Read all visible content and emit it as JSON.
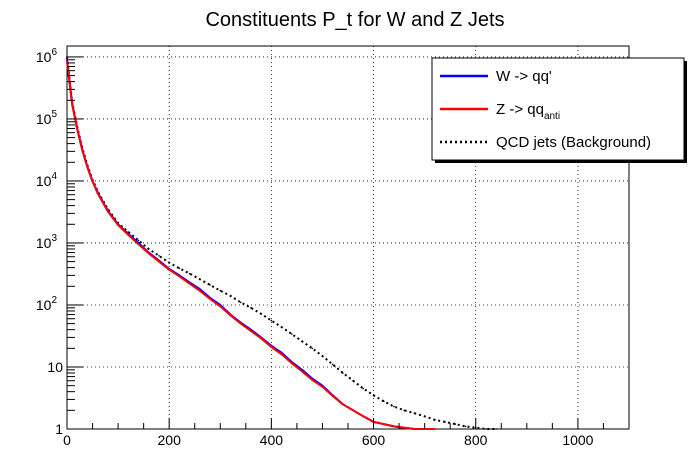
{
  "chart_data": {
    "type": "line",
    "title": "Constituents P_t for W and Z Jets",
    "xlabel": "",
    "ylabel": "",
    "xlim": [
      0,
      1100
    ],
    "ylim": [
      1,
      1500000
    ],
    "y_scale": "log",
    "grid": true,
    "legend_position": "top-right",
    "x_ticks": [
      {
        "value": 0,
        "label": "0"
      },
      {
        "value": 200,
        "label": "200"
      },
      {
        "value": 400,
        "label": "400"
      },
      {
        "value": 600,
        "label": "600"
      },
      {
        "value": 800,
        "label": "800"
      },
      {
        "value": 1000,
        "label": "1000"
      }
    ],
    "y_ticks": [
      {
        "value": 1,
        "base": "1",
        "exp": ""
      },
      {
        "value": 10,
        "base": "10",
        "exp": ""
      },
      {
        "value": 100,
        "base": "10",
        "exp": "2"
      },
      {
        "value": 1000,
        "base": "10",
        "exp": "3"
      },
      {
        "value": 10000,
        "base": "10",
        "exp": "4"
      },
      {
        "value": 100000,
        "base": "10",
        "exp": "5"
      },
      {
        "value": 1000000,
        "base": "10",
        "exp": "6"
      }
    ],
    "series": [
      {
        "name": "W -> qq'",
        "name_sub": "",
        "color": "#0000ff",
        "style": "solid",
        "x": [
          0,
          10,
          20,
          30,
          40,
          50,
          60,
          80,
          100,
          120,
          140,
          160,
          180,
          200,
          220,
          240,
          260,
          280,
          300,
          320,
          340,
          360,
          380,
          400,
          420,
          440,
          460,
          480,
          500,
          520,
          540,
          560,
          580,
          600,
          620,
          640,
          660,
          680,
          700,
          720
        ],
        "y": [
          900000,
          180000,
          70000,
          32000,
          17000,
          10000,
          6500,
          3300,
          2000,
          1400,
          1000,
          700,
          520,
          380,
          300,
          230,
          180,
          130,
          100,
          70,
          52,
          40,
          30,
          22,
          17,
          12,
          9,
          6.5,
          5,
          3.5,
          2.5,
          2,
          1.6,
          1.3,
          1.2,
          1.1,
          1.05,
          1,
          1,
          1
        ]
      },
      {
        "name": "Z -> qq",
        "name_sub": "anti",
        "color": "#ff0000",
        "style": "solid",
        "x": [
          0,
          10,
          20,
          30,
          40,
          50,
          60,
          80,
          100,
          120,
          140,
          160,
          180,
          200,
          220,
          240,
          260,
          280,
          300,
          320,
          340,
          360,
          380,
          400,
          420,
          440,
          460,
          480,
          500,
          520,
          540,
          560,
          580,
          600,
          620,
          640,
          660,
          680,
          700,
          720
        ],
        "y": [
          850000,
          170000,
          68000,
          31000,
          16500,
          9800,
          6300,
          3200,
          1950,
          1350,
          950,
          680,
          500,
          370,
          290,
          220,
          170,
          125,
          95,
          68,
          50,
          38,
          29,
          21,
          16,
          11.5,
          8.5,
          6.2,
          4.8,
          3.4,
          2.5,
          2,
          1.6,
          1.3,
          1.2,
          1.1,
          1.05,
          1,
          1,
          1
        ]
      },
      {
        "name": "QCD jets (Background)",
        "name_sub": "",
        "color": "#000000",
        "style": "dotted",
        "x": [
          0,
          10,
          20,
          30,
          40,
          50,
          60,
          80,
          100,
          120,
          140,
          160,
          180,
          200,
          220,
          240,
          260,
          280,
          300,
          320,
          340,
          360,
          380,
          400,
          420,
          440,
          460,
          480,
          500,
          520,
          540,
          560,
          580,
          600,
          620,
          640,
          660,
          680,
          700,
          720,
          740,
          760,
          780,
          800,
          820,
          840
        ],
        "y": [
          1000000,
          190000,
          75000,
          34000,
          18000,
          10500,
          6800,
          3500,
          2100,
          1500,
          1100,
          800,
          620,
          480,
          390,
          320,
          260,
          210,
          170,
          140,
          110,
          90,
          72,
          56,
          44,
          34,
          26,
          20,
          15,
          11,
          8,
          6,
          4.5,
          3.5,
          2.8,
          2.3,
          2,
          1.8,
          1.6,
          1.4,
          1.3,
          1.2,
          1.1,
          1.05,
          1,
          1
        ]
      }
    ]
  }
}
